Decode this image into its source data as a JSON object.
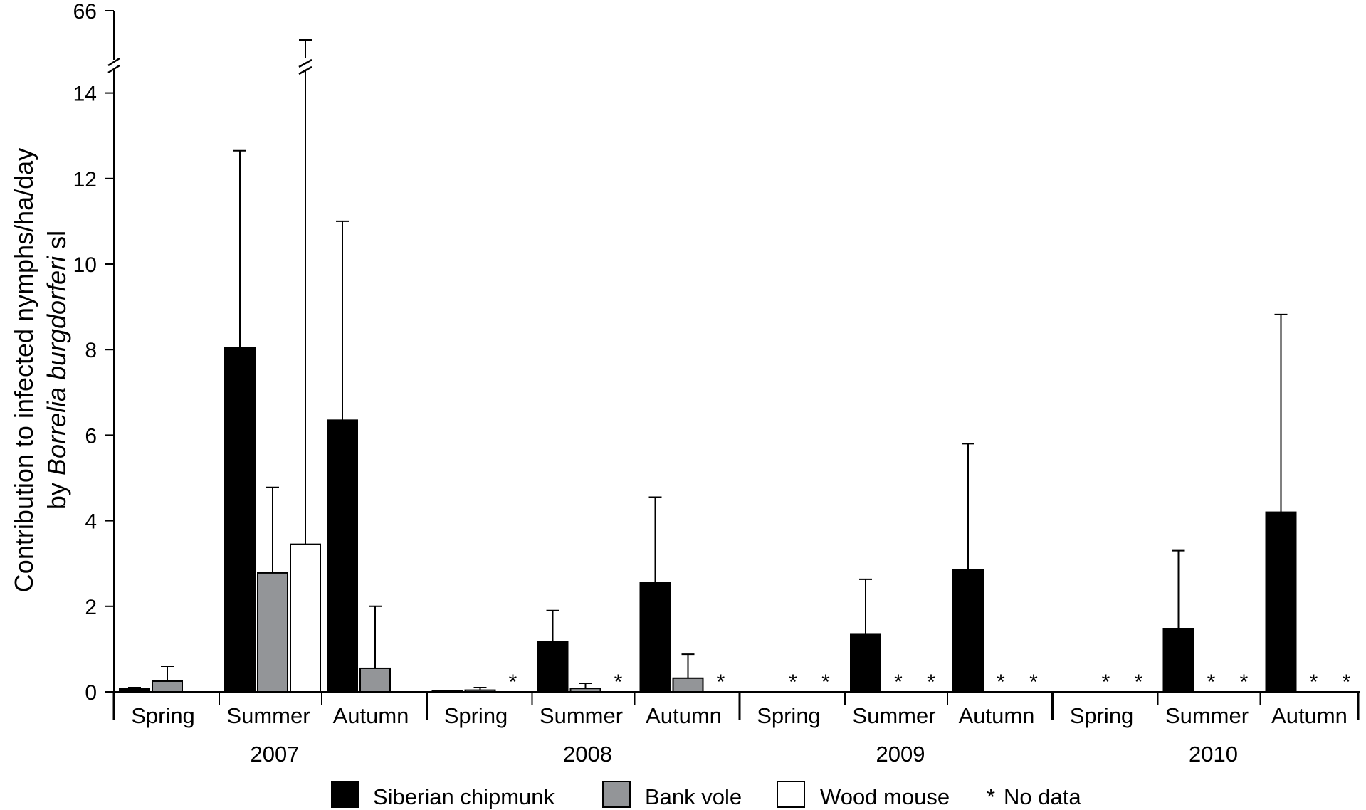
{
  "chart_data": {
    "type": "bar",
    "ylabel_line1": "Contribution to infected nymphs/ha/day",
    "ylabel_line2_prefix": "by ",
    "ylabel_line2_italic": "Borrelia burgdorferi",
    "ylabel_line2_suffix": " sl",
    "yticks": [
      0,
      2,
      4,
      6,
      8,
      10,
      12,
      14
    ],
    "ytick_labels": [
      "0",
      "2",
      "4",
      "6",
      "8",
      "10",
      "12",
      "14"
    ],
    "ylim": [
      0,
      14
    ],
    "y_break_top_label": "66",
    "no_data_marker": "*",
    "groups": [
      {
        "year": "2007",
        "seasons": [
          {
            "label": "Spring",
            "values": [
              0.08,
              0.25,
              0
            ],
            "errors": [
              0.1,
              0.6,
              null
            ],
            "no_data": [
              false,
              false,
              false
            ]
          },
          {
            "label": "Summer",
            "values": [
              8.05,
              2.78,
              3.45
            ],
            "errors": [
              12.65,
              4.78,
              66
            ],
            "no_data": [
              false,
              false,
              false
            ]
          },
          {
            "label": "Autumn",
            "values": [
              6.35,
              0.55,
              0
            ],
            "errors": [
              11.0,
              2.0,
              null
            ],
            "no_data": [
              false,
              false,
              false
            ]
          }
        ]
      },
      {
        "year": "2008",
        "seasons": [
          {
            "label": "Spring",
            "values": [
              0.02,
              0.04,
              0
            ],
            "errors": [
              null,
              0.1,
              null
            ],
            "no_data": [
              false,
              false,
              true
            ]
          },
          {
            "label": "Summer",
            "values": [
              1.17,
              0.08,
              0
            ],
            "errors": [
              1.9,
              0.2,
              null
            ],
            "no_data": [
              false,
              false,
              true
            ]
          },
          {
            "label": "Autumn",
            "values": [
              2.56,
              0.32,
              0
            ],
            "errors": [
              4.55,
              0.88,
              null
            ],
            "no_data": [
              false,
              false,
              true
            ]
          }
        ]
      },
      {
        "year": "2009",
        "seasons": [
          {
            "label": "Spring",
            "values": [
              0,
              0,
              0
            ],
            "errors": [
              null,
              null,
              null
            ],
            "no_data": [
              false,
              true,
              true
            ]
          },
          {
            "label": "Summer",
            "values": [
              1.34,
              0,
              0
            ],
            "errors": [
              2.63,
              null,
              null
            ],
            "no_data": [
              false,
              true,
              true
            ]
          },
          {
            "label": "Autumn",
            "values": [
              2.86,
              0,
              0
            ],
            "errors": [
              5.8,
              null,
              null
            ],
            "no_data": [
              false,
              true,
              true
            ]
          }
        ]
      },
      {
        "year": "2010",
        "seasons": [
          {
            "label": "Spring",
            "values": [
              0,
              0,
              0
            ],
            "errors": [
              null,
              null,
              null
            ],
            "no_data": [
              false,
              true,
              true
            ]
          },
          {
            "label": "Summer",
            "values": [
              1.47,
              0,
              0
            ],
            "errors": [
              3.3,
              null,
              null
            ],
            "no_data": [
              false,
              true,
              true
            ]
          },
          {
            "label": "Autumn",
            "values": [
              4.2,
              0,
              0
            ],
            "errors": [
              8.82,
              null,
              null
            ],
            "no_data": [
              false,
              true,
              true
            ]
          }
        ]
      }
    ],
    "series": [
      {
        "name": "Siberian chipmunk",
        "color": "#000000"
      },
      {
        "name": "Bank vole",
        "color": "#939598"
      },
      {
        "name": "Wood mouse",
        "color": "#ffffff"
      }
    ],
    "legend": {
      "placement": "bottom",
      "no_data_label": "No data"
    }
  }
}
